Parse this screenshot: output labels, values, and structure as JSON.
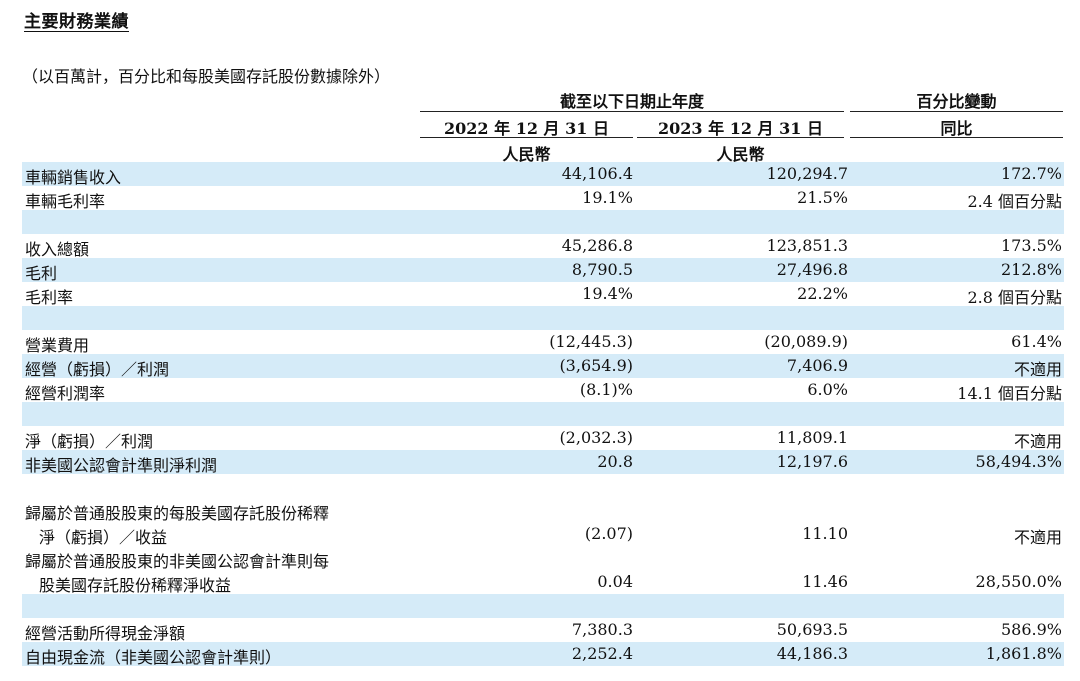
{
  "title": "主要財務業績",
  "note": "（以百萬計，百分比和每股美國存託股份數據除外）",
  "header": {
    "period_group": "截至以下日期止年度",
    "change_group": "百分比變動",
    "col_2022": "2022 年 12 月 31 日",
    "col_2023": "2023 年 12 月 31 日",
    "yoy": "同比",
    "currency_2022": "人民幣",
    "currency_2023": "人民幣"
  },
  "rows": [
    {
      "label": "車輛銷售收入",
      "v2022": "44,106.4",
      "v2023": "120,294.7",
      "change": "172.7%"
    },
    {
      "label": "車輛毛利率",
      "v2022": "19.1%",
      "v2023": "21.5%",
      "change": "2.4 個百分點"
    },
    {
      "label": "收入總額",
      "v2022": "45,286.8",
      "v2023": "123,851.3",
      "change": "173.5%"
    },
    {
      "label": "毛利",
      "v2022": "8,790.5",
      "v2023": "27,496.8",
      "change": "212.8%"
    },
    {
      "label": "毛利率",
      "v2022": "19.4%",
      "v2023": "22.2%",
      "change": "2.8 個百分點"
    },
    {
      "label": "營業費用",
      "v2022": "(12,445.3)",
      "v2023": "(20,089.9)",
      "change": "61.4%"
    },
    {
      "label": "經營（虧損）／利潤",
      "v2022": "(3,654.9)",
      "v2023": "7,406.9",
      "change": "不適用"
    },
    {
      "label": "經營利潤率",
      "v2022": "(8.1)%",
      "v2023": "6.0%",
      "change": "14.1 個百分點"
    },
    {
      "label": "淨（虧損）／利潤",
      "v2022": "(2,032.3)",
      "v2023": "11,809.1",
      "change": "不適用"
    },
    {
      "label": "非美國公認會計準則淨利潤",
      "v2022": "20.8",
      "v2023": "12,197.6",
      "change": "58,494.3%"
    },
    {
      "label_line1": "歸屬於普通股股東的每股美國存託股份稀釋",
      "label_line2": "淨（虧損）／收益",
      "v2022": "(2.07)",
      "v2023": "11.10",
      "change": "不適用"
    },
    {
      "label_line1": "歸屬於普通股股東的非美國公認會計準則每",
      "label_line2": "股美國存託股份稀釋淨收益",
      "v2022": "0.04",
      "v2023": "11.46",
      "change": "28,550.0%"
    },
    {
      "label": "經營活動所得現金淨額",
      "v2022": "7,380.3",
      "v2023": "50,693.5",
      "change": "586.9%"
    },
    {
      "label": "自由現金流（非美國公認會計準則）",
      "v2022": "2,252.4",
      "v2023": "44,186.3",
      "change": "1,861.8%"
    }
  ]
}
